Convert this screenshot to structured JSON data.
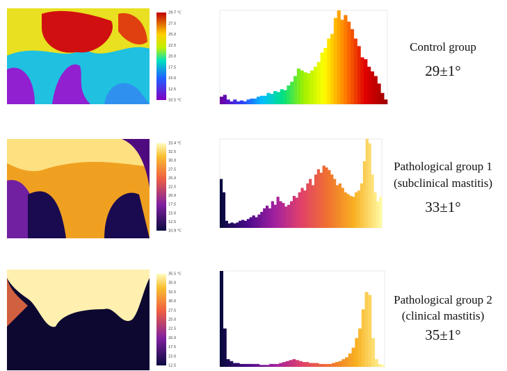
{
  "panels": [
    {
      "lines": [
        "Control group"
      ],
      "value": "29±1°",
      "colorbar_labels": [
        "29.7 °C",
        "27.5",
        "25.0",
        "22.5",
        "20.0",
        "17.5",
        "15.0",
        "12.5",
        "10.5 °C"
      ]
    },
    {
      "lines": [
        "Pathological group 1",
        "(subclinical mastitis)"
      ],
      "value": "33±1°",
      "colorbar_labels": [
        "33.4 °C",
        "32.5",
        "30.0",
        "27.5",
        "25.0",
        "22.5",
        "20.0",
        "17.5",
        "15.0",
        "12.5",
        "10.9 °C"
      ]
    },
    {
      "lines": [
        "Pathological group 2",
        "(clinical mastitis)"
      ],
      "value": "35±1°",
      "colorbar_labels": [
        "35.5 °C",
        "35.0",
        "32.5",
        "30.0",
        "27.5",
        "25.0",
        "22.5",
        "20.0",
        "17.5",
        "15.0",
        "12.5"
      ]
    }
  ],
  "chart_data": [
    {
      "type": "bar",
      "ylim": [
        0,
        100
      ],
      "colormap": [
        "#6a00a8",
        "#3040ff",
        "#00c0ff",
        "#00e080",
        "#a0f000",
        "#ffff00",
        "#ff8000",
        "#e00000",
        "#a00000"
      ],
      "values": [
        8,
        10,
        5,
        3,
        5,
        3,
        4,
        3,
        5,
        6,
        6,
        8,
        9,
        9,
        12,
        11,
        14,
        13,
        16,
        15,
        20,
        24,
        30,
        38,
        36,
        34,
        33,
        36,
        40,
        45,
        55,
        60,
        70,
        75,
        92,
        100,
        90,
        95,
        88,
        80,
        70,
        62,
        50,
        48,
        40,
        35,
        30,
        22,
        12,
        5
      ]
    },
    {
      "type": "bar",
      "ylim": [
        0,
        100
      ],
      "colormap": [
        "#0a0a40",
        "#4a0a8a",
        "#a020a0",
        "#e0406a",
        "#f07030",
        "#f8b020",
        "#fff8a0"
      ],
      "values": [
        55,
        40,
        8,
        5,
        6,
        5,
        6,
        8,
        9,
        8,
        10,
        12,
        14,
        12,
        15,
        18,
        22,
        25,
        22,
        30,
        26,
        35,
        30,
        28,
        24,
        26,
        30,
        36,
        34,
        40,
        45,
        42,
        50,
        55,
        48,
        60,
        66,
        62,
        70,
        68,
        65,
        60,
        55,
        48,
        50,
        45,
        40,
        38,
        36,
        35,
        40,
        42,
        50,
        75,
        100,
        95,
        60,
        40,
        30,
        35
      ]
    },
    {
      "type": "bar",
      "ylim": [
        0,
        100
      ],
      "colormap": [
        "#0a0a40",
        "#4a0a8a",
        "#a020a0",
        "#e0406a",
        "#f07030",
        "#f8b020",
        "#fff8a0"
      ],
      "values": [
        100,
        40,
        8,
        6,
        4,
        4,
        3,
        3,
        3,
        3,
        3,
        3,
        2,
        2,
        2,
        3,
        3,
        3,
        4,
        5,
        6,
        7,
        8,
        7,
        6,
        5,
        5,
        4,
        4,
        4,
        3,
        3,
        3,
        3,
        4,
        5,
        6,
        8,
        10,
        14,
        20,
        30,
        40,
        60,
        78,
        75,
        30,
        8,
        3,
        2
      ]
    }
  ]
}
